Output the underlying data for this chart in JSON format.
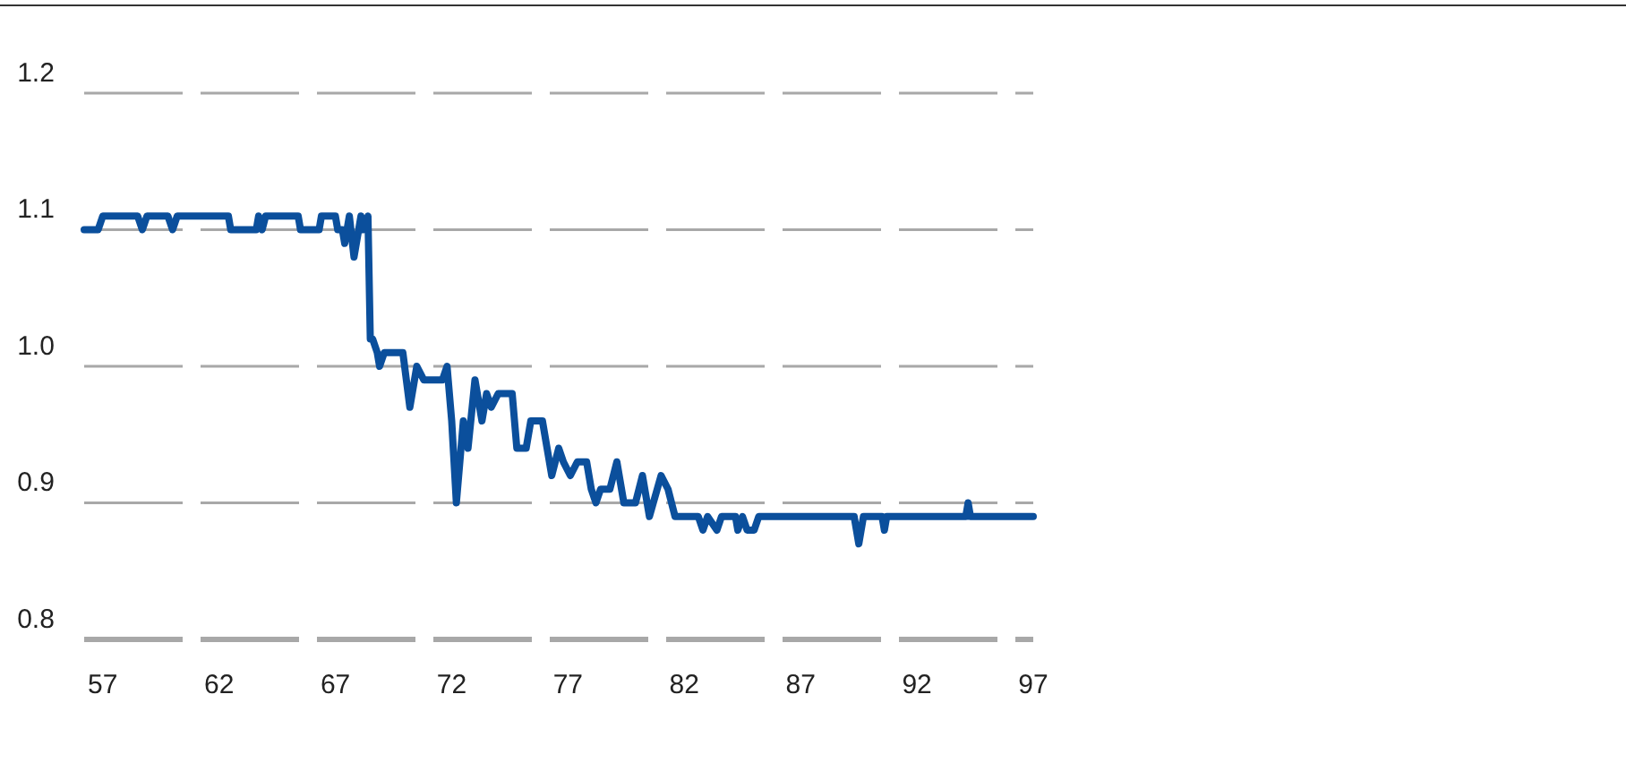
{
  "chart_data": {
    "type": "line",
    "x": [
      56.2,
      56.8,
      57.0,
      58.5,
      58.7,
      58.9,
      59.8,
      60.0,
      60.2,
      62.4,
      62.5,
      63.6,
      63.7,
      63.85,
      64.0,
      65.4,
      65.5,
      66.3,
      66.4,
      67.0,
      67.1,
      67.3,
      67.4,
      67.6,
      67.8,
      68.1,
      68.2,
      68.4,
      68.5,
      68.6,
      68.8,
      68.9,
      69.1,
      69.9,
      70.2,
      70.5,
      70.8,
      71.6,
      71.8,
      72.0,
      72.2,
      72.5,
      72.7,
      73.0,
      73.3,
      73.5,
      73.7,
      74.0,
      74.4,
      74.6,
      74.8,
      75.2,
      75.4,
      75.9,
      76.1,
      76.3,
      76.6,
      76.8,
      77.1,
      77.4,
      77.8,
      78.0,
      78.2,
      78.4,
      78.8,
      79.1,
      79.4,
      79.9,
      80.2,
      80.5,
      81.0,
      81.3,
      81.6,
      82.6,
      82.8,
      83.0,
      83.4,
      83.6,
      84.2,
      84.3,
      84.5,
      84.7,
      85.0,
      85.2,
      89.3,
      89.5,
      89.7,
      90.5,
      90.6,
      90.7,
      94.1,
      94.2,
      94.3,
      97.0
    ],
    "series": [
      {
        "color": "#0b4f9c",
        "values": [
          1.1,
          1.1,
          1.11,
          1.11,
          1.1,
          1.11,
          1.11,
          1.1,
          1.11,
          1.11,
          1.1,
          1.1,
          1.11,
          1.1,
          1.11,
          1.11,
          1.1,
          1.1,
          1.11,
          1.11,
          1.1,
          1.1,
          1.09,
          1.11,
          1.08,
          1.11,
          1.1,
          1.11,
          1.02,
          1.02,
          1.01,
          1.0,
          1.01,
          1.01,
          0.97,
          1.0,
          0.99,
          0.99,
          1.0,
          0.96,
          0.9,
          0.96,
          0.94,
          0.99,
          0.96,
          0.98,
          0.97,
          0.98,
          0.98,
          0.98,
          0.94,
          0.94,
          0.96,
          0.96,
          0.94,
          0.92,
          0.94,
          0.93,
          0.92,
          0.93,
          0.93,
          0.91,
          0.9,
          0.91,
          0.91,
          0.93,
          0.9,
          0.9,
          0.92,
          0.89,
          0.92,
          0.91,
          0.89,
          0.89,
          0.88,
          0.89,
          0.88,
          0.89,
          0.89,
          0.88,
          0.89,
          0.88,
          0.88,
          0.89,
          0.89,
          0.87,
          0.89,
          0.89,
          0.88,
          0.89,
          0.89,
          0.9,
          0.89,
          0.89
        ]
      }
    ],
    "xlim": [
      56.2,
      97
    ],
    "xticks": [
      57,
      62,
      67,
      72,
      77,
      82,
      87,
      92,
      97
    ],
    "ylim": [
      0.8,
      1.2
    ],
    "yticks": [
      0.8,
      0.9,
      {
        "value": 1.0,
        "label": "1.0"
      },
      1.1,
      1.2
    ],
    "grid": "y"
  }
}
